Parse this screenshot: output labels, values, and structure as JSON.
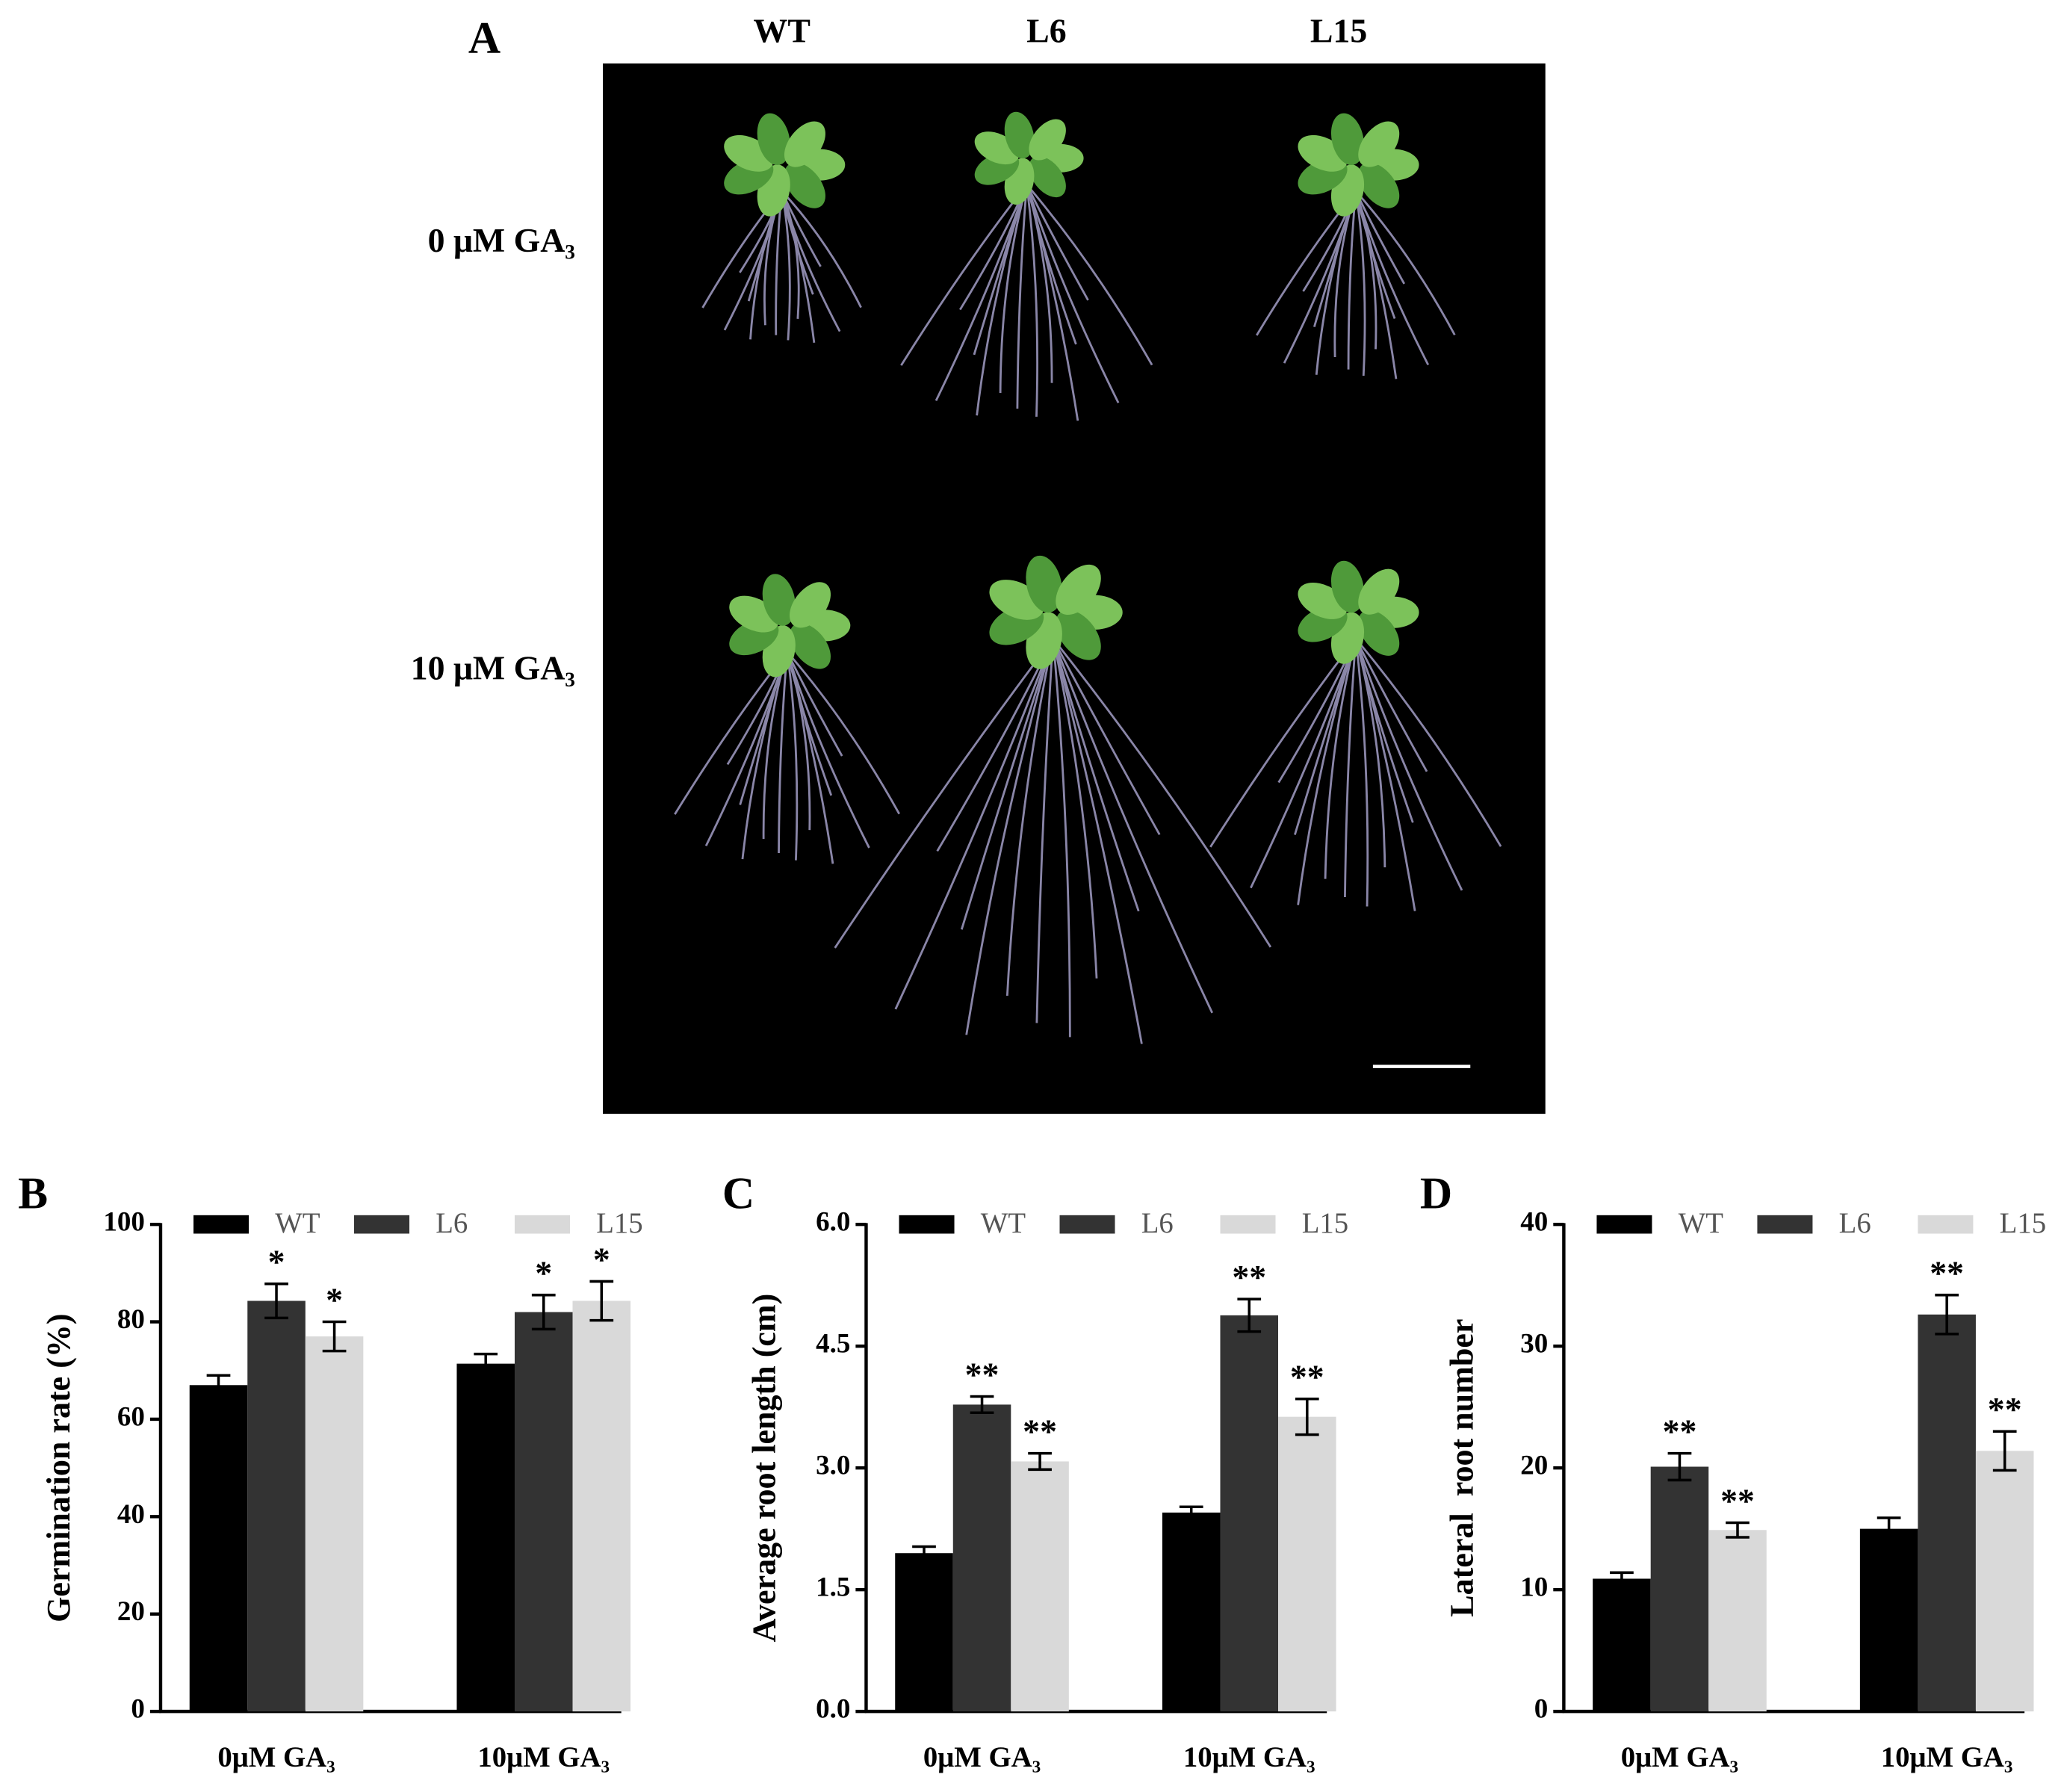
{
  "panel_a": {
    "label": "A",
    "columns": [
      "WT",
      "L6",
      "L15"
    ],
    "rows": [
      "0 μM GA₃",
      "10 μM GA₃"
    ]
  },
  "chart_data": [
    {
      "type": "bar",
      "panel": "B",
      "y_label": "Germination rate (%)",
      "categories": [
        "0μM GA₃",
        "10μM GA₃"
      ],
      "series": [
        {
          "name": "WT",
          "color": "#000000",
          "values": [
            67,
            71.4
          ],
          "errors": [
            2,
            2
          ]
        },
        {
          "name": "L6",
          "color": "#333333",
          "values": [
            84.3,
            82
          ],
          "errors": [
            3.5,
            3.5
          ],
          "significance": [
            "*",
            "*"
          ]
        },
        {
          "name": "L15",
          "color": "#d9d9d9",
          "values": [
            77,
            84.3
          ],
          "errors": [
            3,
            4
          ],
          "significance": [
            "*",
            "*"
          ]
        }
      ],
      "ylim": [
        0,
        100
      ],
      "yticks": [
        0,
        20,
        40,
        60,
        80,
        100
      ],
      "legend": "top"
    },
    {
      "type": "bar",
      "panel": "C",
      "y_label": "Average root length (cm)",
      "categories": [
        "0μM GA₃",
        "10μM GA₃"
      ],
      "series": [
        {
          "name": "WT",
          "color": "#000000",
          "values": [
            1.95,
            2.45
          ],
          "errors": [
            0.08,
            0.07
          ]
        },
        {
          "name": "L6",
          "color": "#333333",
          "values": [
            3.78,
            4.88
          ],
          "errors": [
            0.1,
            0.2
          ],
          "significance": [
            "**",
            "**"
          ]
        },
        {
          "name": "L15",
          "color": "#d9d9d9",
          "values": [
            3.08,
            3.63
          ],
          "errors": [
            0.1,
            0.22
          ],
          "significance": [
            "**",
            "**"
          ]
        }
      ],
      "ylim": [
        0,
        6
      ],
      "yticks": [
        {
          "value": 0,
          "label": "0.0"
        },
        1.5,
        {
          "value": 3,
          "label": "3.0"
        },
        4.5,
        {
          "value": 6,
          "label": "6.0"
        }
      ],
      "legend": "top"
    },
    {
      "type": "bar",
      "panel": "D",
      "y_label": "Lateral  root number",
      "categories": [
        "0μM GA₃",
        "10μM GA₃"
      ],
      "series": [
        {
          "name": "WT",
          "color": "#000000",
          "values": [
            10.9,
            15
          ],
          "errors": [
            0.5,
            0.9
          ]
        },
        {
          "name": "L6",
          "color": "#333333",
          "values": [
            20.1,
            32.6
          ],
          "errors": [
            1.1,
            1.6
          ],
          "significance": [
            "**",
            "**"
          ]
        },
        {
          "name": "L15",
          "color": "#d9d9d9",
          "values": [
            14.9,
            21.4
          ],
          "errors": [
            0.6,
            1.6
          ],
          "significance": [
            "**",
            "**"
          ]
        }
      ],
      "ylim": [
        0,
        40
      ],
      "yticks": [
        0,
        10,
        20,
        30,
        40
      ],
      "legend": "top"
    }
  ]
}
